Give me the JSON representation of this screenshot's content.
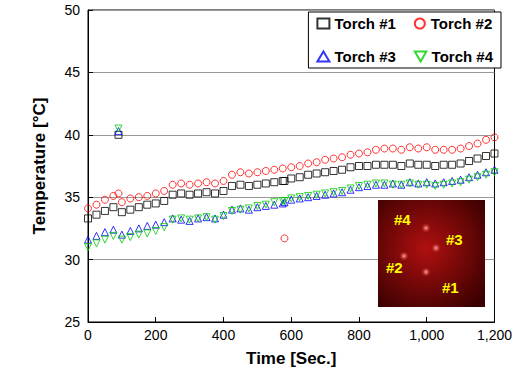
{
  "chart_data": {
    "type": "scatter",
    "x_label": "Time [Sec.]",
    "y_label": "Temperature [°C]",
    "xlim": [
      0,
      1200
    ],
    "xticks": [
      0,
      200,
      400,
      600,
      800,
      1000,
      1200
    ],
    "ylim": [
      25,
      50
    ],
    "yticks": [
      25,
      30,
      35,
      40,
      45,
      50
    ],
    "grid": "y",
    "legend": "upper right",
    "inset_labels": [
      "#4",
      "#3",
      "#2",
      "#1"
    ],
    "x": [
      0,
      25,
      50,
      75,
      90,
      100,
      125,
      150,
      175,
      200,
      225,
      250,
      275,
      300,
      325,
      350,
      375,
      400,
      425,
      450,
      475,
      500,
      525,
      550,
      575,
      580,
      600,
      625,
      650,
      675,
      700,
      725,
      750,
      775,
      800,
      825,
      850,
      875,
      900,
      925,
      950,
      975,
      1000,
      1025,
      1050,
      1075,
      1100,
      1125,
      1150,
      1175,
      1200
    ],
    "series": [
      {
        "name": "Torch #1",
        "color": "#000000",
        "marker": "square",
        "values": [
          33.3,
          33.6,
          33.9,
          34.2,
          40.0,
          33.8,
          34.0,
          34.2,
          34.4,
          34.5,
          34.7,
          35.2,
          35.3,
          35.2,
          35.3,
          35.4,
          35.3,
          35.5,
          35.9,
          36.0,
          35.9,
          36.0,
          36.1,
          36.2,
          36.3,
          36.3,
          36.5,
          36.6,
          36.8,
          36.9,
          37.0,
          37.1,
          37.2,
          37.4,
          37.5,
          37.5,
          37.6,
          37.6,
          37.6,
          37.5,
          37.7,
          37.6,
          37.6,
          37.5,
          37.6,
          37.6,
          37.7,
          37.9,
          38.1,
          38.3,
          38.5
        ]
      },
      {
        "name": "Torch #2",
        "color": "#ff0000",
        "marker": "circle",
        "values": [
          34.1,
          34.4,
          34.8,
          35.1,
          35.3,
          34.6,
          34.9,
          35.0,
          35.1,
          35.3,
          35.5,
          36.0,
          36.1,
          36.0,
          36.1,
          36.2,
          36.1,
          36.3,
          36.8,
          37.0,
          36.9,
          37.0,
          37.1,
          37.2,
          37.3,
          31.7,
          37.4,
          37.5,
          37.7,
          37.8,
          38.0,
          38.1,
          38.2,
          38.4,
          38.5,
          38.6,
          38.8,
          38.9,
          38.9,
          38.8,
          39.0,
          38.9,
          39.0,
          38.8,
          38.8,
          38.8,
          38.9,
          39.1,
          39.3,
          39.6,
          39.8
        ]
      },
      {
        "name": "Torch #3",
        "color": "#0000ff",
        "marker": "triangle",
        "values": [
          31.6,
          31.9,
          32.2,
          32.4,
          40.3,
          32.0,
          32.3,
          32.5,
          32.7,
          32.8,
          33.0,
          33.3,
          33.2,
          33.1,
          33.3,
          33.4,
          33.3,
          33.6,
          34.0,
          34.1,
          34.0,
          34.2,
          34.3,
          34.4,
          34.5,
          34.6,
          34.8,
          34.9,
          35.0,
          35.1,
          35.2,
          35.3,
          35.4,
          35.6,
          35.8,
          35.9,
          36.0,
          36.0,
          36.1,
          36.0,
          36.2,
          36.1,
          36.2,
          36.1,
          36.2,
          36.3,
          36.4,
          36.6,
          36.8,
          37.0,
          37.2
        ]
      },
      {
        "name": "Torch #4",
        "color": "#00cc00",
        "marker": "triangle-down",
        "values": [
          31.0,
          31.3,
          31.6,
          31.9,
          40.5,
          31.6,
          31.8,
          32.0,
          32.1,
          32.3,
          32.6,
          33.2,
          33.3,
          33.2,
          33.3,
          33.4,
          33.2,
          33.5,
          33.9,
          34.0,
          34.1,
          34.3,
          34.4,
          34.6,
          34.7,
          34.7,
          34.9,
          35.0,
          35.1,
          35.2,
          35.3,
          35.4,
          35.5,
          35.7,
          35.9,
          36.0,
          36.1,
          36.1,
          36.0,
          36.0,
          36.1,
          36.0,
          36.0,
          35.9,
          36.0,
          36.1,
          36.2,
          36.4,
          36.6,
          36.8,
          37.0
        ]
      }
    ]
  }
}
